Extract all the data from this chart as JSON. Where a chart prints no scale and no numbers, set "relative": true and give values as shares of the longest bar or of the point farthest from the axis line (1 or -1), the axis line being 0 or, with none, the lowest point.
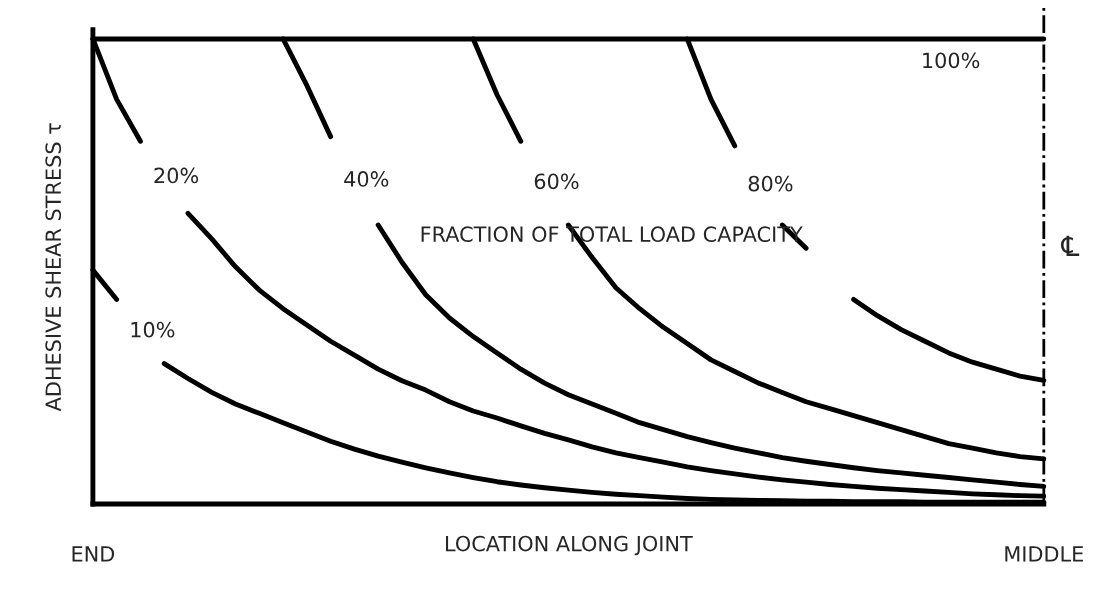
{
  "chart_data": {
    "type": "line",
    "relative": true,
    "xlabel": "LOCATION ALONG JOINT",
    "ylabel": "ADHESIVE SHEAR STRESS τ",
    "categories": [
      "END",
      null,
      null,
      null,
      null,
      null,
      null,
      null,
      null,
      null,
      null,
      null,
      null,
      null,
      null,
      null,
      null,
      null,
      null,
      null,
      null,
      null,
      null,
      null,
      null,
      null,
      null,
      null,
      null,
      null,
      null,
      null,
      null,
      null,
      null,
      null,
      null,
      null,
      null,
      null,
      "MIDDLE"
    ],
    "grid": false,
    "legend": false,
    "marker": "none",
    "line_style": "solid",
    "series": [
      {
        "name": "10%",
        "color": "#000000",
        "values": [
          0.503,
          0.44,
          null,
          0.302,
          0.27,
          0.24,
          0.215,
          0.195,
          0.175,
          0.155,
          0.135,
          0.118,
          0.103,
          0.09,
          0.078,
          0.067,
          0.057,
          0.048,
          0.041,
          0.035,
          0.03,
          0.025,
          0.021,
          0.018,
          0.015,
          0.012,
          0.01,
          0.009,
          0.008,
          0.007,
          0.006,
          0.006,
          0.005,
          0.005,
          0.005,
          0.004,
          0.004,
          0.004,
          0.004,
          0.004,
          0.004
        ]
      },
      {
        "name": "20%",
        "color": "#000000",
        "values": [
          1,
          0.87,
          0.78,
          null,
          0.625,
          0.57,
          0.51,
          0.46,
          0.42,
          0.385,
          0.35,
          0.32,
          0.29,
          0.265,
          0.245,
          0.22,
          0.2,
          0.185,
          0.168,
          0.152,
          0.138,
          0.123,
          0.11,
          0.1,
          0.09,
          0.08,
          0.072,
          0.065,
          0.058,
          0.052,
          0.047,
          0.042,
          0.038,
          0.034,
          0.031,
          0.028,
          0.025,
          0.022,
          0.02,
          0.018,
          0.017
        ]
      },
      {
        "name": "40%",
        "color": "#000000",
        "values": [
          null,
          null,
          null,
          null,
          null,
          null,
          null,
          null,
          1,
          0.9,
          0.79,
          null,
          0.6,
          0.52,
          0.45,
          0.4,
          0.36,
          0.325,
          0.29,
          0.26,
          0.235,
          0.215,
          0.195,
          0.175,
          0.16,
          0.145,
          0.132,
          0.12,
          0.11,
          0.1,
          0.092,
          0.085,
          0.078,
          0.072,
          0.067,
          0.062,
          0.057,
          0.052,
          0.047,
          0.042,
          0.038
        ]
      },
      {
        "name": "60%",
        "color": "#000000",
        "values": [
          null,
          null,
          null,
          null,
          null,
          null,
          null,
          null,
          null,
          null,
          null,
          null,
          null,
          null,
          null,
          null,
          1,
          0.88,
          0.78,
          null,
          0.6,
          0.53,
          0.465,
          0.42,
          0.38,
          0.345,
          0.31,
          0.285,
          0.26,
          0.24,
          0.22,
          0.205,
          0.19,
          0.175,
          0.16,
          0.145,
          0.13,
          0.12,
          0.11,
          0.102,
          0.097
        ]
      },
      {
        "name": "80%",
        "color": "#000000",
        "values": [
          null,
          null,
          null,
          null,
          null,
          null,
          null,
          null,
          null,
          null,
          null,
          null,
          null,
          null,
          null,
          null,
          null,
          null,
          null,
          null,
          null,
          null,
          null,
          null,
          null,
          1,
          0.87,
          0.77,
          null,
          0.6,
          0.55,
          null,
          0.44,
          0.405,
          0.375,
          0.35,
          0.325,
          0.305,
          0.29,
          0.275,
          0.266
        ]
      },
      {
        "name": "100%",
        "color": "#000000",
        "values": [
          1,
          1,
          1,
          1,
          1,
          1,
          1,
          1,
          1,
          1,
          1,
          1,
          1,
          1,
          1,
          1,
          1,
          1,
          1,
          1,
          1,
          1,
          1,
          1,
          1,
          1,
          1,
          1,
          1,
          1,
          1,
          1,
          1,
          1,
          1,
          1,
          1,
          1,
          1,
          1,
          1
        ]
      }
    ],
    "ref_lines": [
      {
        "axis": "x",
        "value": "MIDDLE",
        "label": "℄",
        "line_style": "dashdot"
      }
    ],
    "annotations": [
      "FRACTION OF TOTAL LOAD CAPACITY"
    ]
  }
}
